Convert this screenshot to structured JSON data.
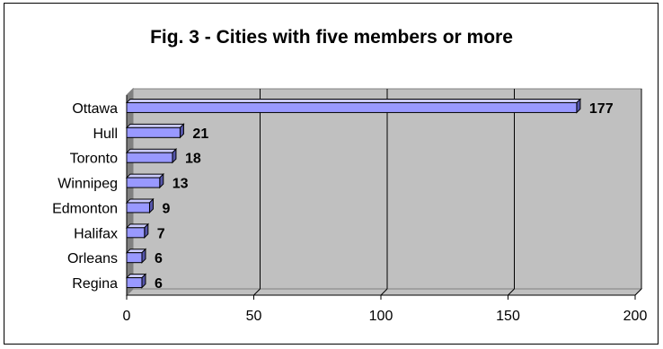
{
  "chart_data": {
    "type": "bar",
    "orientation": "horizontal",
    "title": "Fig. 3 - Cities with five members or more",
    "xlabel": "",
    "ylabel": "",
    "categories": [
      "Ottawa",
      "Hull",
      "Toronto",
      "Winnipeg",
      "Edmonton",
      "Halifax",
      "Orleans",
      "Regina"
    ],
    "values": [
      177,
      21,
      18,
      13,
      9,
      7,
      6,
      6
    ],
    "xlim": [
      0,
      200
    ],
    "xticks": [
      0,
      50,
      100,
      150,
      200
    ],
    "grid": true,
    "legend": "none",
    "colors": {
      "bar_fill": "#9999ff",
      "plot_background": "#c0c0c0",
      "plot_wall_side": "#808080",
      "gridline": "#000000"
    }
  }
}
